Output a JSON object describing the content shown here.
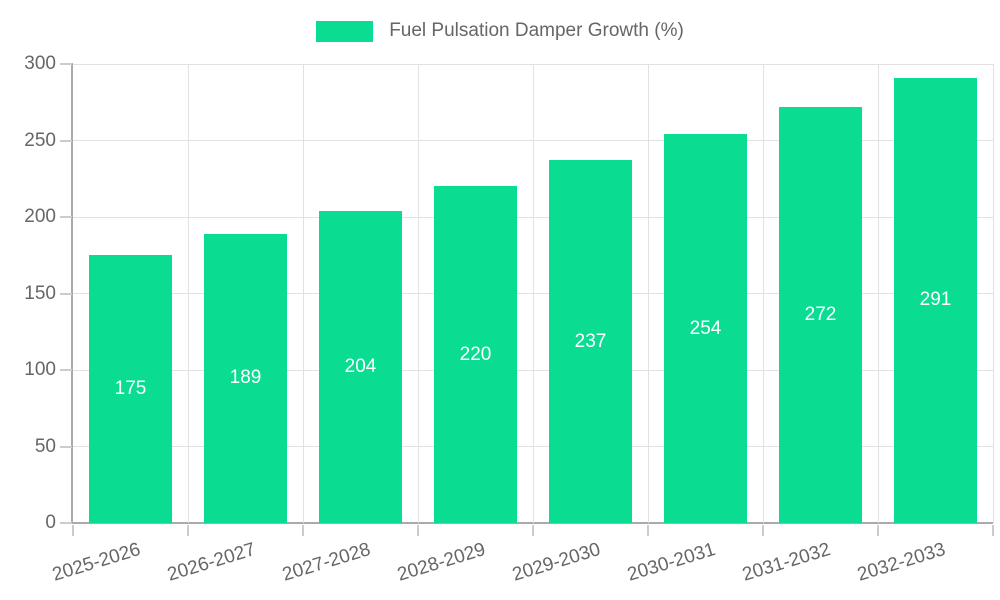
{
  "legend": {
    "label": "Fuel Pulsation Damper Growth (%)"
  },
  "chart_data": {
    "type": "bar",
    "title": "Fuel Pulsation Damper Growth (%)",
    "categories": [
      "2025-2026",
      "2026-2027",
      "2027-2028",
      "2028-2029",
      "2029-2030",
      "2030-2031",
      "2031-2032",
      "2032-2033"
    ],
    "values": [
      175,
      189,
      204,
      220,
      237,
      254,
      272,
      291
    ],
    "data_labels_shown": true,
    "xlabel": "",
    "ylabel": "",
    "ylim": [
      0,
      300
    ],
    "yticks": [
      0,
      50,
      100,
      150,
      200,
      250,
      300
    ],
    "grid": true,
    "legend_position": "top",
    "colors": {
      "bar": "#0adc92",
      "bar_label": "#ffffff",
      "axis_text": "#666666",
      "axis_line": "#aaaaaa",
      "grid_line": "#e2e2e2",
      "tick": "#cccccc",
      "background": "#ffffff"
    }
  }
}
